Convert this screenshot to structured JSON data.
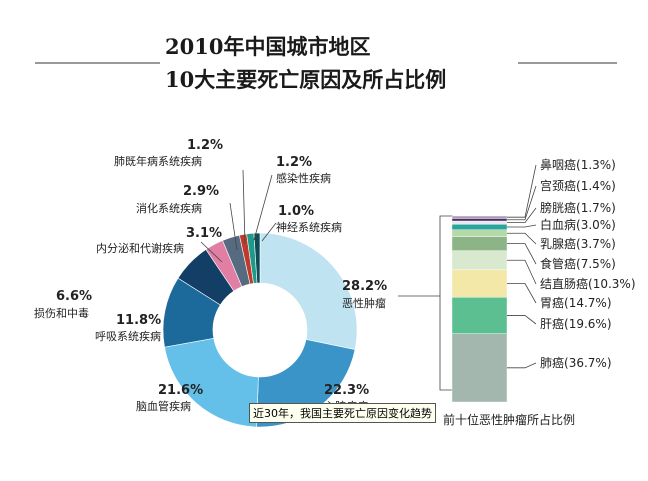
{
  "title": {
    "line1": "2010年中国城市地区",
    "line2": "10大主要死亡原因及所占比例"
  },
  "tooltip": "近30年，我国主要死亡原因变化趋势",
  "colors": {
    "line": "#444444"
  },
  "chart_data": [
    {
      "type": "pie",
      "donut": true,
      "slices": [
        {
          "label": "恶性肿瘤",
          "percent": "28.2%",
          "value": 28.2,
          "color": "#bfe3f1"
        },
        {
          "label": "心脏疾病",
          "percent": "22.3%",
          "value": 22.3,
          "color": "#3a94c7"
        },
        {
          "label": "脑血管疾病",
          "percent": "21.6%",
          "value": 21.6,
          "color": "#64bfe9"
        },
        {
          "label": "呼吸系统疾病",
          "percent": "11.8%",
          "value": 11.8,
          "color": "#1c6a9c"
        },
        {
          "label": "损伤和中毒",
          "percent": "6.6%",
          "value": 6.6,
          "color": "#133f66"
        },
        {
          "label": "内分泌和代谢疾病",
          "percent": "3.1%",
          "value": 3.1,
          "color": "#e07fa3"
        },
        {
          "label": "消化系统疾病",
          "percent": "2.9%",
          "value": 2.9,
          "color": "#566b80"
        },
        {
          "label": "肺既年病系统疾病",
          "percent": "1.2%",
          "value": 1.2,
          "color": "#c0392b"
        },
        {
          "label": "感染性疾病",
          "percent": "1.2%",
          "value": 1.2,
          "color": "#1e9a8a"
        },
        {
          "label": "神经系统疾病",
          "percent": "1.0%",
          "value": 1.0,
          "color": "#0e4c57"
        }
      ]
    },
    {
      "type": "bar",
      "stacked": true,
      "caption": "前十位恶性肿瘤所占比例",
      "segments": [
        {
          "label": "肺癌",
          "percent": "(36.7%)",
          "value": 36.7,
          "color": "#a3b7ae"
        },
        {
          "label": "肝癌",
          "percent": "(19.6%)",
          "value": 19.6,
          "color": "#5cbf92"
        },
        {
          "label": "胃癌",
          "percent": "(14.7%)",
          "value": 14.7,
          "color": "#f3e8a8"
        },
        {
          "label": "结直肠癌",
          "percent": "(10.3%)",
          "value": 10.3,
          "color": "#d9e9cf"
        },
        {
          "label": "食管癌",
          "percent": "(7.5%)",
          "value": 7.5,
          "color": "#8cb487"
        },
        {
          "label": "乳腺癌",
          "percent": "(3.7%)",
          "value": 3.7,
          "color": "#b5d9a9"
        },
        {
          "label": "白血病",
          "percent": "(3.0%)",
          "value": 3.0,
          "color": "#2aa59a"
        },
        {
          "label": "膀胱癌",
          "percent": "(1.7%)",
          "value": 1.7,
          "color": "#e9e6f3"
        },
        {
          "label": "宫颈癌",
          "percent": "(1.4%)",
          "value": 1.4,
          "color": "#4a2f5a"
        },
        {
          "label": "鼻咽癌",
          "percent": "(1.3%)",
          "value": 1.3,
          "color": "#ab9bc2"
        }
      ]
    }
  ]
}
